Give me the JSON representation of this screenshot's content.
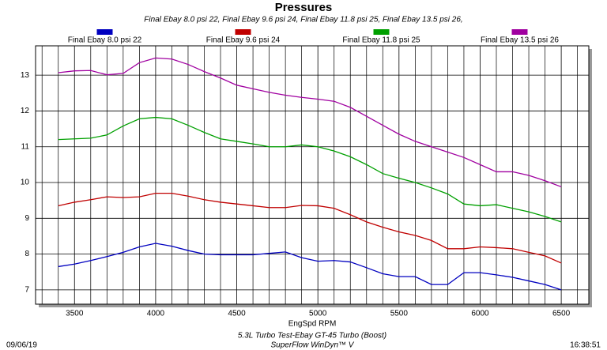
{
  "chart_data": {
    "type": "line",
    "title": "Pressures",
    "subtitle": "Final Ebay 8.0 psi 22, Final Ebay 9.6 psi 24, Final Ebay 11.8 psi 25, Final Ebay 13.5 psi 26,",
    "x_label": "EngSpd RPM",
    "footer": [
      "5.3L Turbo Test-Ebay GT-45 Turbo (Boost)",
      "SuperFlow WinDyn™ V"
    ],
    "date": "09/06/19",
    "time": "16:38:51",
    "x": [
      3400,
      3500,
      3600,
      3700,
      3800,
      3900,
      4000,
      4100,
      4200,
      4300,
      4400,
      4500,
      4600,
      4700,
      4800,
      4900,
      5000,
      5100,
      5200,
      5300,
      5400,
      5500,
      5600,
      5700,
      5800,
      5900,
      6000,
      6100,
      6200,
      6300,
      6400,
      6500
    ],
    "series": [
      {
        "name": "Final Ebay 8.0 psi 22",
        "color": "#0000c0",
        "values": [
          7.65,
          7.72,
          7.82,
          7.93,
          8.05,
          8.2,
          8.3,
          8.22,
          8.1,
          8.0,
          7.98,
          7.98,
          7.98,
          8.02,
          8.06,
          7.9,
          7.8,
          7.82,
          7.78,
          7.62,
          7.45,
          7.37,
          7.37,
          7.15,
          7.15,
          7.48,
          7.48,
          7.42,
          7.35,
          7.25,
          7.15,
          7.0
        ]
      },
      {
        "name": "Final Ebay 9.6 psi 24",
        "color": "#c00000",
        "values": [
          9.35,
          9.45,
          9.52,
          9.6,
          9.58,
          9.6,
          9.7,
          9.7,
          9.62,
          9.52,
          9.45,
          9.4,
          9.35,
          9.3,
          9.3,
          9.36,
          9.35,
          9.28,
          9.1,
          8.9,
          8.75,
          8.62,
          8.52,
          8.38,
          8.15,
          8.15,
          8.2,
          8.18,
          8.15,
          8.05,
          7.95,
          7.75
        ]
      },
      {
        "name": "Final Ebay 11.8 psi 25",
        "color": "#00a000",
        "values": [
          11.2,
          11.22,
          11.24,
          11.33,
          11.58,
          11.78,
          11.82,
          11.78,
          11.6,
          11.4,
          11.22,
          11.15,
          11.08,
          11.0,
          11.0,
          11.05,
          11.0,
          10.88,
          10.72,
          10.5,
          10.25,
          10.12,
          10.0,
          9.85,
          9.68,
          9.4,
          9.35,
          9.38,
          9.28,
          9.18,
          9.05,
          8.9
        ]
      },
      {
        "name": "Final Ebay 13.5 psi 26",
        "color": "#a000a0",
        "values": [
          13.07,
          13.12,
          13.13,
          13.01,
          13.05,
          13.35,
          13.48,
          13.45,
          13.3,
          13.1,
          12.92,
          12.72,
          12.62,
          12.52,
          12.44,
          12.38,
          12.33,
          12.27,
          12.1,
          11.85,
          11.6,
          11.35,
          11.15,
          11.0,
          10.85,
          10.7,
          10.5,
          10.3,
          10.3,
          10.2,
          10.05,
          9.88
        ]
      }
    ],
    "xlim": [
      3260,
      6670
    ],
    "ylim": [
      6.6,
      13.82
    ],
    "xticks": [
      3500,
      4000,
      4500,
      5000,
      5500,
      6000,
      6500
    ],
    "xminorticks": [
      3300,
      3400,
      3600,
      3700,
      3800,
      3900,
      4100,
      4200,
      4300,
      4400,
      4600,
      4700,
      4800,
      4900,
      5100,
      5200,
      5300,
      5400,
      5600,
      5700,
      5800,
      5900,
      6100,
      6200,
      6300,
      6400,
      6600
    ],
    "yticks": [
      7,
      8,
      9,
      10,
      11,
      12,
      13
    ],
    "grid": true
  }
}
